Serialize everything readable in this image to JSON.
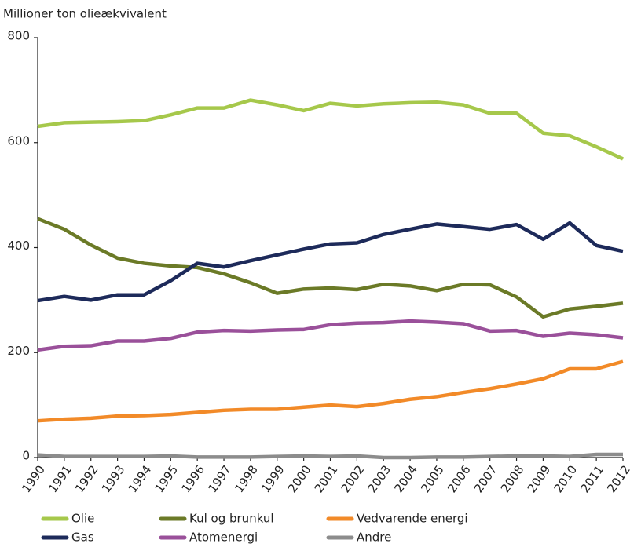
{
  "chart_data": {
    "type": "line",
    "y_label": "Millioner ton olieækvivalent",
    "categories": [
      "1990",
      "1991",
      "1992",
      "1993",
      "1994",
      "1995",
      "1996",
      "1997",
      "1998",
      "1999",
      "2000",
      "2001",
      "2002",
      "2003",
      "2004",
      "2005",
      "2006",
      "2007",
      "2008",
      "2009",
      "2010",
      "2011",
      "2012"
    ],
    "ylim": [
      0,
      800
    ],
    "yticks": [
      0,
      200,
      400,
      600,
      800
    ],
    "grid": false,
    "series": [
      {
        "name": "Olie",
        "color": "#a6c84b",
        "values": [
          631,
          638,
          639,
          640,
          642,
          653,
          666,
          666,
          681,
          672,
          661,
          675,
          670,
          674,
          676,
          677,
          672,
          656,
          656,
          618,
          613,
          592,
          569
        ]
      },
      {
        "name": "Kul og brunkul",
        "color": "#6b7a27",
        "values": [
          455,
          435,
          405,
          380,
          370,
          365,
          362,
          350,
          333,
          313,
          321,
          323,
          320,
          330,
          327,
          318,
          330,
          329,
          306,
          268,
          283,
          288,
          294
        ]
      },
      {
        "name": "Vedvarende energi",
        "color": "#f28a28",
        "values": [
          70,
          73,
          75,
          79,
          80,
          82,
          86,
          90,
          92,
          92,
          96,
          100,
          97,
          103,
          111,
          116,
          124,
          131,
          140,
          150,
          169,
          169,
          183
        ]
      },
      {
        "name": "Gas",
        "color": "#1d2a5a",
        "values": [
          299,
          307,
          300,
          310,
          310,
          337,
          370,
          363,
          375,
          386,
          397,
          407,
          409,
          425,
          435,
          445,
          440,
          435,
          444,
          416,
          447,
          404,
          393
        ]
      },
      {
        "name": "Atomenergi",
        "color": "#9a509a",
        "values": [
          205,
          212,
          213,
          222,
          222,
          227,
          239,
          242,
          241,
          243,
          244,
          253,
          256,
          257,
          260,
          258,
          255,
          241,
          242,
          231,
          237,
          234,
          228
        ]
      },
      {
        "name": "Andre",
        "color": "#8c8c8c",
        "values": [
          5,
          2,
          2,
          2,
          2,
          3,
          1,
          1,
          1,
          2,
          3,
          2,
          3,
          0,
          0,
          1,
          1,
          2,
          3,
          3,
          2,
          6,
          6
        ]
      }
    ]
  }
}
